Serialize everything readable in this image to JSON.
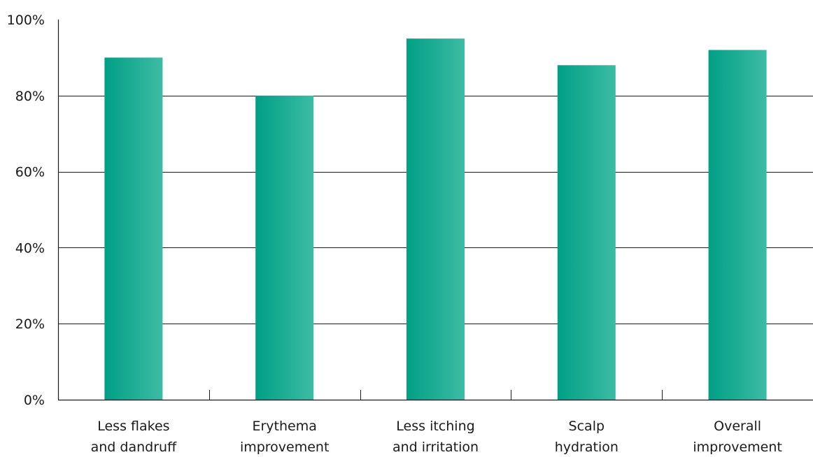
{
  "chart_data": {
    "type": "bar",
    "categories": [
      [
        "Less flakes",
        "and dandruff"
      ],
      [
        "Erythema",
        "improvement"
      ],
      [
        "Less itching",
        "and irritation"
      ],
      [
        "Scalp",
        "hydration"
      ],
      [
        "Overall",
        "improvement"
      ]
    ],
    "values": [
      90,
      80,
      95,
      88,
      92
    ],
    "ylim": [
      0,
      100
    ],
    "yticks": [
      0,
      20,
      40,
      60,
      80,
      100
    ],
    "ytick_labels": [
      "0%",
      "20%",
      "40%",
      "60%",
      "80%",
      "100%"
    ],
    "title": "",
    "xlabel": "",
    "ylabel": "",
    "grid": true,
    "legend": "none",
    "colors": {
      "bar_start": "#00A086",
      "bar_end": "#3DBBA4",
      "axis": "#1a1a1a"
    }
  }
}
